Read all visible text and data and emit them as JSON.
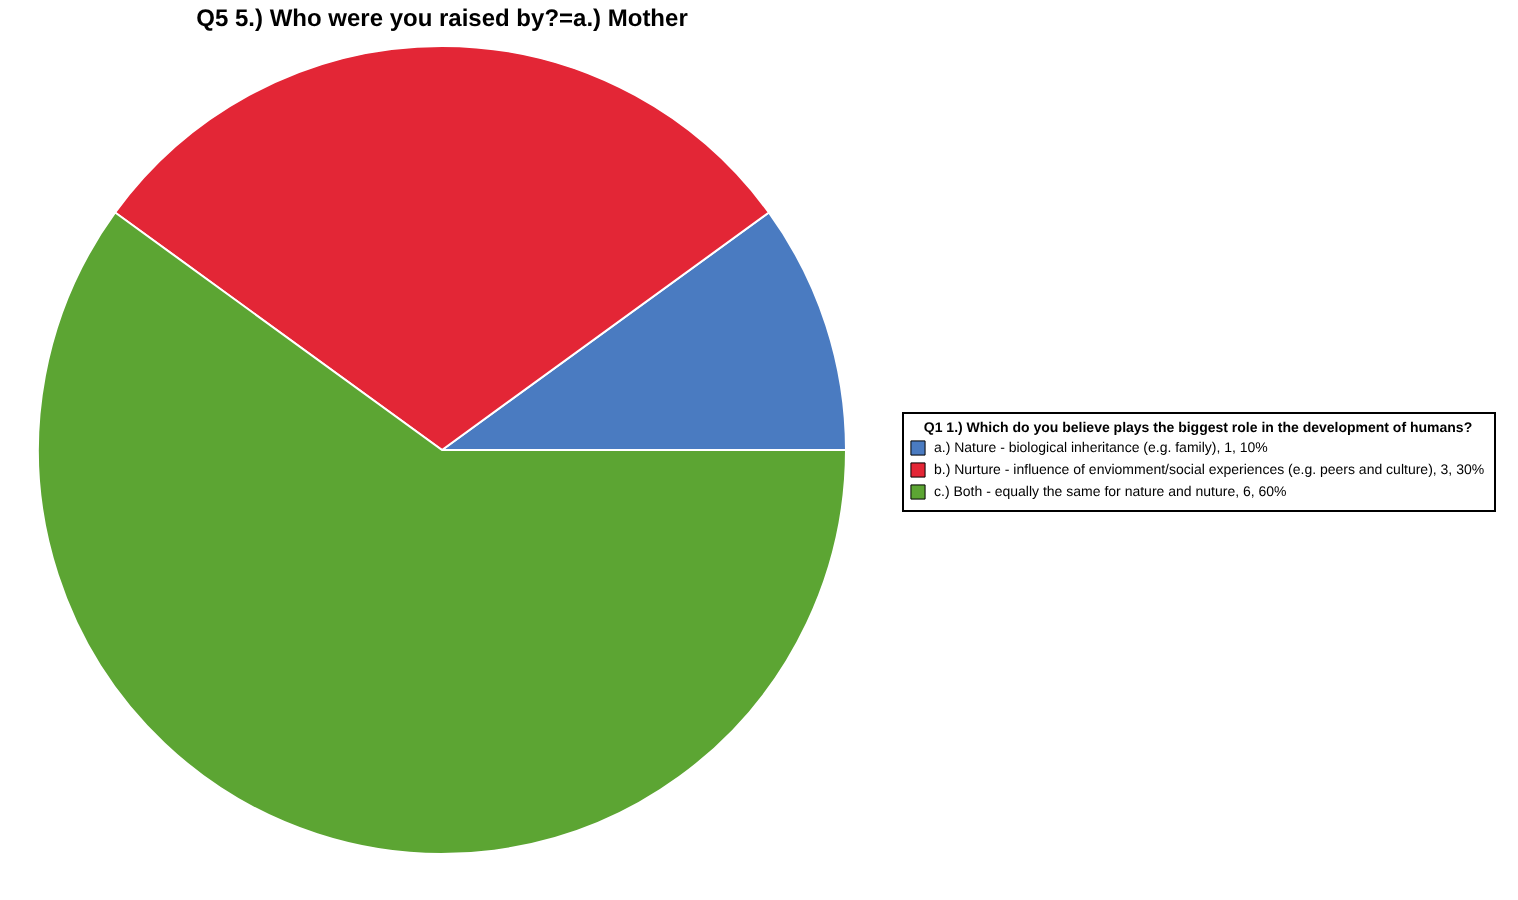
{
  "chart_data": {
    "type": "pie",
    "title": "Q5 5.) Who were you raised by?=a.) Mother",
    "legend_title": "Q1 1.) Which do you believe plays the biggest role in the development of humans?",
    "categories": [
      "a.) Nature - biological inheritance (e.g. family), 1, 10%",
      "b.) Nurture - influence of enviomment/social experiences (e.g. peers and culture), 3, 30%",
      "c.) Both - equally the same for nature and nuture, 6, 60%"
    ],
    "values": [
      1,
      3,
      6
    ],
    "colors": [
      "#4a7bc1",
      "#e32636",
      "#5ca533"
    ],
    "legend": "right"
  }
}
